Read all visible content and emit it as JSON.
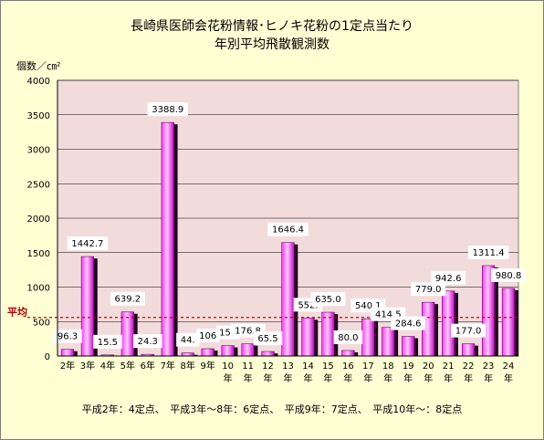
{
  "title_line1": "長崎県医師会花粉情報･ヒノキ花粉の1定点当たり",
  "title_line2": "年別平均飛散観測数",
  "unit_label": "個数／㎝²",
  "footnote": "平成2年：4定点、　平成3年〜8年：6定点、　平成9年：7定点、　平成10年〜：8定点",
  "colors": {
    "background": "#ffffd4",
    "plot_bg": "#f2dcdb",
    "bar_light": "#ffccff",
    "bar_mid": "#ff33ff",
    "bar_dark": "#cc00cc",
    "average_line": "#cc0000"
  },
  "chart_data": {
    "type": "bar",
    "title": "長崎県医師会花粉情報･ヒノキ花粉の1定点当たり 年別平均飛散観測数",
    "ylabel": "個数／㎝²",
    "ylim": [
      0,
      4000
    ],
    "yticks": [
      "0",
      "500",
      "1000",
      "1500",
      "2000",
      "2500",
      "3000",
      "3500",
      "4000"
    ],
    "grid": true,
    "categories": [
      "2年",
      "3年",
      "4年",
      "5年",
      "6年",
      "7年",
      "8年",
      "9年",
      "10年",
      "11年",
      "12年",
      "13年",
      "14年",
      "15年",
      "16年",
      "17年",
      "18年",
      "19年",
      "20年",
      "21年",
      "22年",
      "23年",
      "24年"
    ],
    "values": [
      96.3,
      1442.7,
      15.5,
      639.2,
      24.3,
      3388.9,
      44,
      106,
      151,
      176.8,
      65.5,
      1646.4,
      552.1,
      635.0,
      80.0,
      540.1,
      414.5,
      284.6,
      779.0,
      942.6,
      177.0,
      1311.4,
      980.8
    ],
    "labels": [
      "96.3",
      "1442.7",
      "15.5",
      "639.2",
      "24.3",
      "3388.9",
      "44.",
      "106",
      "151",
      "176.8",
      "65.5",
      "1646.4",
      "552.",
      "635.0",
      "80.0",
      "540.1",
      "414.5",
      "284.6",
      "779.0",
      "942.6",
      "177.0",
      "1311.4",
      "980.8"
    ],
    "average_label": "平均",
    "average_value": 560
  }
}
